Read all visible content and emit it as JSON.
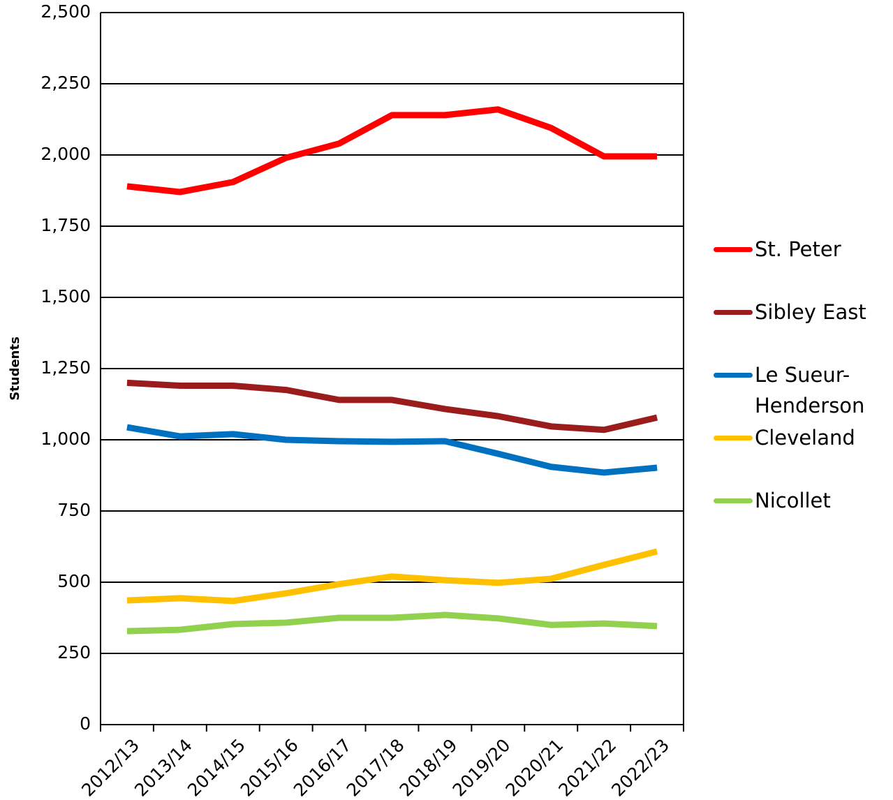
{
  "chart_data": {
    "type": "line",
    "y_label": "Students",
    "categories": [
      "2012/13",
      "2013/14",
      "2014/15",
      "2015/16",
      "2016/17",
      "2017/18",
      "2018/19",
      "2019/20",
      "2020/21",
      "2021/22",
      "2022/23"
    ],
    "series": [
      {
        "name": "St. Peter",
        "color": "#ff0000",
        "values": [
          1890,
          1870,
          1905,
          1990,
          2040,
          2140,
          2140,
          2160,
          2095,
          1995,
          1995
        ]
      },
      {
        "name": "Sibley East",
        "color": "#9b1c1c",
        "values": [
          1200,
          1190,
          1190,
          1175,
          1140,
          1140,
          1108,
          1083,
          1047,
          1035,
          1078
        ]
      },
      {
        "name": "Le Sueur-Henderson",
        "color": "#0070c0",
        "values": [
          1044,
          1012,
          1020,
          1000,
          995,
          993,
          995,
          951,
          905,
          885,
          902
        ]
      },
      {
        "name": "Cleveland",
        "color": "#ffc000",
        "values": [
          436,
          444,
          434,
          461,
          493,
          520,
          507,
          498,
          512,
          561,
          608
        ]
      },
      {
        "name": "Nicollet",
        "color": "#92d050",
        "values": [
          328,
          333,
          353,
          358,
          375,
          375,
          385,
          373,
          350,
          355,
          346
        ]
      }
    ],
    "ylim": [
      0,
      2500
    ],
    "yticks": [
      0,
      250,
      500,
      750,
      {
        "value": 1000,
        "label": "1,000"
      },
      {
        "value": 1250,
        "label": "1,250"
      },
      {
        "value": 1500,
        "label": "1,500"
      },
      {
        "value": 1750,
        "label": "1,750"
      },
      {
        "value": 2000,
        "label": "2,000"
      },
      {
        "value": 2250,
        "label": "2,250"
      },
      {
        "value": 2500,
        "label": "2,500"
      }
    ],
    "grid": true,
    "legend": "right"
  }
}
